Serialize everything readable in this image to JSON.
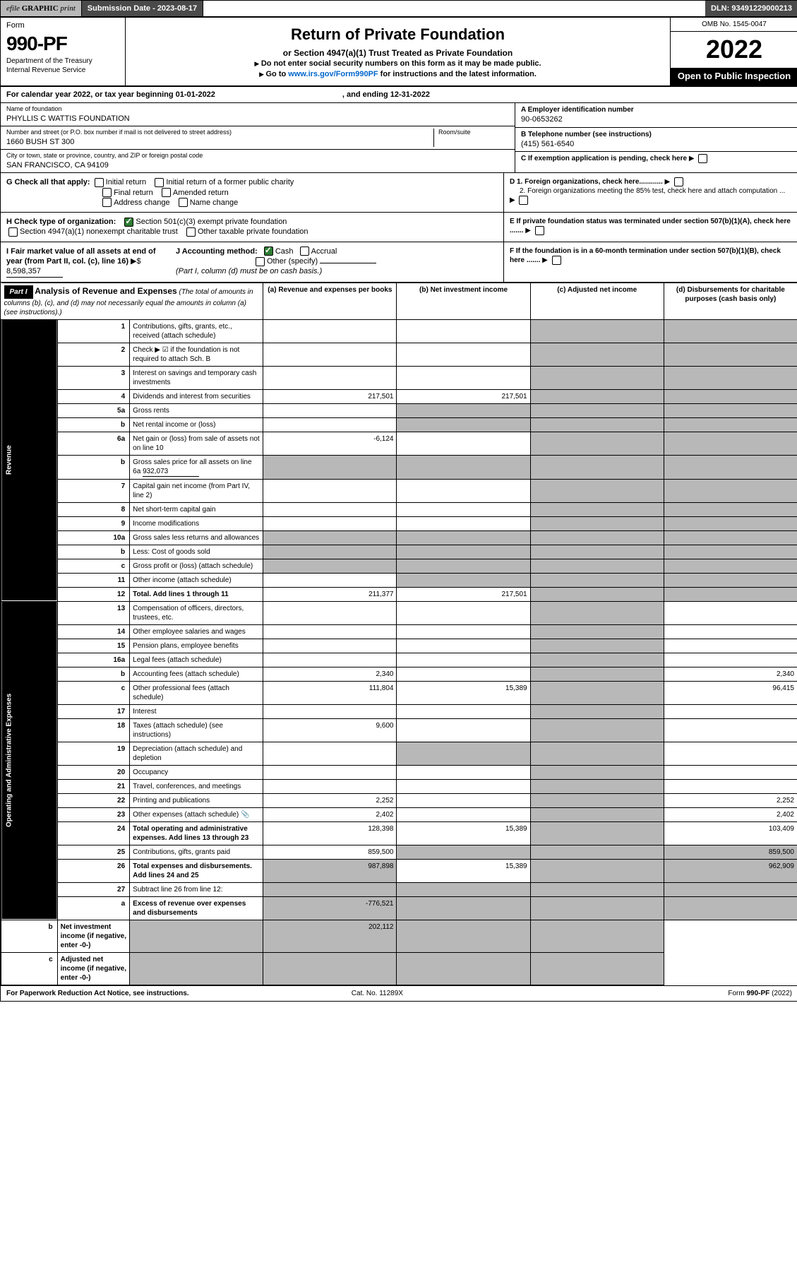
{
  "topbar": {
    "efile_prefix": "efile",
    "efile_bold": "GRAPHIC",
    "efile_suffix": "print",
    "submission_label": "Submission Date - 2023-08-17",
    "dln": "DLN: 93491229000213"
  },
  "header": {
    "form_label": "Form",
    "form_number": "990-PF",
    "dept1": "Department of the Treasury",
    "dept2": "Internal Revenue Service",
    "title": "Return of Private Foundation",
    "subtitle": "or Section 4947(a)(1) Trust Treated as Private Foundation",
    "inst1": "Do not enter social security numbers on this form as it may be made public.",
    "inst2_pre": "Go to ",
    "inst2_link": "www.irs.gov/Form990PF",
    "inst2_post": " for instructions and the latest information.",
    "omb": "OMB No. 1545-0047",
    "year": "2022",
    "opi": "Open to Public Inspection"
  },
  "calyear": {
    "text": "For calendar year 2022, or tax year beginning 01-01-2022",
    "ending": ", and ending 12-31-2022"
  },
  "entity": {
    "name_lbl": "Name of foundation",
    "name": "PHYLLIS C WATTIS FOUNDATION",
    "addr_lbl": "Number and street (or P.O. box number if mail is not delivered to street address)",
    "room_lbl": "Room/suite",
    "addr": "1660 BUSH ST 300",
    "city_lbl": "City or town, state or province, country, and ZIP or foreign postal code",
    "city": "SAN FRANCISCO, CA  94109",
    "ein_lbl": "A Employer identification number",
    "ein": "90-0653262",
    "tel_lbl": "B Telephone number (see instructions)",
    "tel": "(415) 561-6540",
    "c_lbl": "C If exemption application is pending, check here"
  },
  "g": {
    "label": "G Check all that apply:",
    "opts": [
      "Initial return",
      "Initial return of a former public charity",
      "Final return",
      "Amended return",
      "Address change",
      "Name change"
    ]
  },
  "d": {
    "d1": "D 1. Foreign organizations, check here............",
    "d2": "2. Foreign organizations meeting the 85% test, check here and attach computation ..."
  },
  "h": {
    "label": "H Check type of organization:",
    "o1": "Section 501(c)(3) exempt private foundation",
    "o2": "Section 4947(a)(1) nonexempt charitable trust",
    "o3": "Other taxable private foundation"
  },
  "e": "E  If private foundation status was terminated under section 507(b)(1)(A), check here .......",
  "i": {
    "label": "I Fair market value of all assets at end of year (from Part II, col. (c), line 16)",
    "val": "8,598,357"
  },
  "j": {
    "label": "J Accounting method:",
    "cash": "Cash",
    "accrual": "Accrual",
    "other": "Other (specify)",
    "note": "(Part I, column (d) must be on cash basis.)"
  },
  "f": "F  If the foundation is in a 60-month termination under section 507(b)(1)(B), check here .......",
  "part1": {
    "hdr": "Part I",
    "title": "Analysis of Revenue and Expenses",
    "note": "(The total of amounts in columns (b), (c), and (d) may not necessarily equal the amounts in column (a) (see instructions).)",
    "cols": {
      "a": "(a)",
      "at": "Revenue and expenses per books",
      "b": "(b)",
      "bt": "Net investment income",
      "c": "(c)",
      "ct": "Adjusted net income",
      "d": "(d)",
      "dt": "Disbursements for charitable purposes (cash basis only)"
    }
  },
  "sides": {
    "rev": "Revenue",
    "exp": "Operating and Administrative Expenses"
  },
  "rows": [
    {
      "n": "1",
      "d": "Contributions, gifts, grants, etc., received (attach schedule)"
    },
    {
      "n": "2",
      "d": "Check ▶ ☑ if the foundation is not required to attach Sch. B"
    },
    {
      "n": "3",
      "d": "Interest on savings and temporary cash investments"
    },
    {
      "n": "4",
      "d": "Dividends and interest from securities",
      "a": "217,501",
      "b": "217,501"
    },
    {
      "n": "5a",
      "d": "Gross rents"
    },
    {
      "n": "b",
      "d": "Net rental income or (loss)"
    },
    {
      "n": "6a",
      "d": "Net gain or (loss) from sale of assets not on line 10",
      "a": "-6,124"
    },
    {
      "n": "b",
      "d": "Gross sales price for all assets on line 6a",
      "inline": "932,073"
    },
    {
      "n": "7",
      "d": "Capital gain net income (from Part IV, line 2)"
    },
    {
      "n": "8",
      "d": "Net short-term capital gain"
    },
    {
      "n": "9",
      "d": "Income modifications"
    },
    {
      "n": "10a",
      "d": "Gross sales less returns and allowances"
    },
    {
      "n": "b",
      "d": "Less: Cost of goods sold"
    },
    {
      "n": "c",
      "d": "Gross profit or (loss) (attach schedule)"
    },
    {
      "n": "11",
      "d": "Other income (attach schedule)"
    },
    {
      "n": "12",
      "d": "Total. Add lines 1 through 11",
      "bold": true,
      "a": "211,377",
      "b": "217,501"
    },
    {
      "n": "13",
      "d": "Compensation of officers, directors, trustees, etc."
    },
    {
      "n": "14",
      "d": "Other employee salaries and wages"
    },
    {
      "n": "15",
      "d": "Pension plans, employee benefits"
    },
    {
      "n": "16a",
      "d": "Legal fees (attach schedule)"
    },
    {
      "n": "b",
      "d": "Accounting fees (attach schedule)",
      "a": "2,340",
      "dd": "2,340"
    },
    {
      "n": "c",
      "d": "Other professional fees (attach schedule)",
      "a": "111,804",
      "b": "15,389",
      "dd": "96,415"
    },
    {
      "n": "17",
      "d": "Interest"
    },
    {
      "n": "18",
      "d": "Taxes (attach schedule) (see instructions)",
      "a": "9,600"
    },
    {
      "n": "19",
      "d": "Depreciation (attach schedule) and depletion"
    },
    {
      "n": "20",
      "d": "Occupancy"
    },
    {
      "n": "21",
      "d": "Travel, conferences, and meetings"
    },
    {
      "n": "22",
      "d": "Printing and publications",
      "a": "2,252",
      "dd": "2,252"
    },
    {
      "n": "23",
      "d": "Other expenses (attach schedule)",
      "a": "2,402",
      "dd": "2,402",
      "icon": true
    },
    {
      "n": "24",
      "d": "Total operating and administrative expenses. Add lines 13 through 23",
      "bold": true,
      "a": "128,398",
      "b": "15,389",
      "dd": "103,409"
    },
    {
      "n": "25",
      "d": "Contributions, gifts, grants paid",
      "a": "859,500",
      "dd": "859,500"
    },
    {
      "n": "26",
      "d": "Total expenses and disbursements. Add lines 24 and 25",
      "bold": true,
      "a": "987,898",
      "b": "15,389",
      "dd": "962,909"
    },
    {
      "n": "27",
      "d": "Subtract line 26 from line 12:"
    },
    {
      "n": "a",
      "d": "Excess of revenue over expenses and disbursements",
      "bold": true,
      "a": "-776,521"
    },
    {
      "n": "b",
      "d": "Net investment income (if negative, enter -0-)",
      "bold": true,
      "b": "202,112"
    },
    {
      "n": "c",
      "d": "Adjusted net income (if negative, enter -0-)",
      "bold": true
    }
  ],
  "footer": {
    "l": "For Paperwork Reduction Act Notice, see instructions.",
    "m": "Cat. No. 11289X",
    "r": "Form 990-PF (2022)"
  }
}
